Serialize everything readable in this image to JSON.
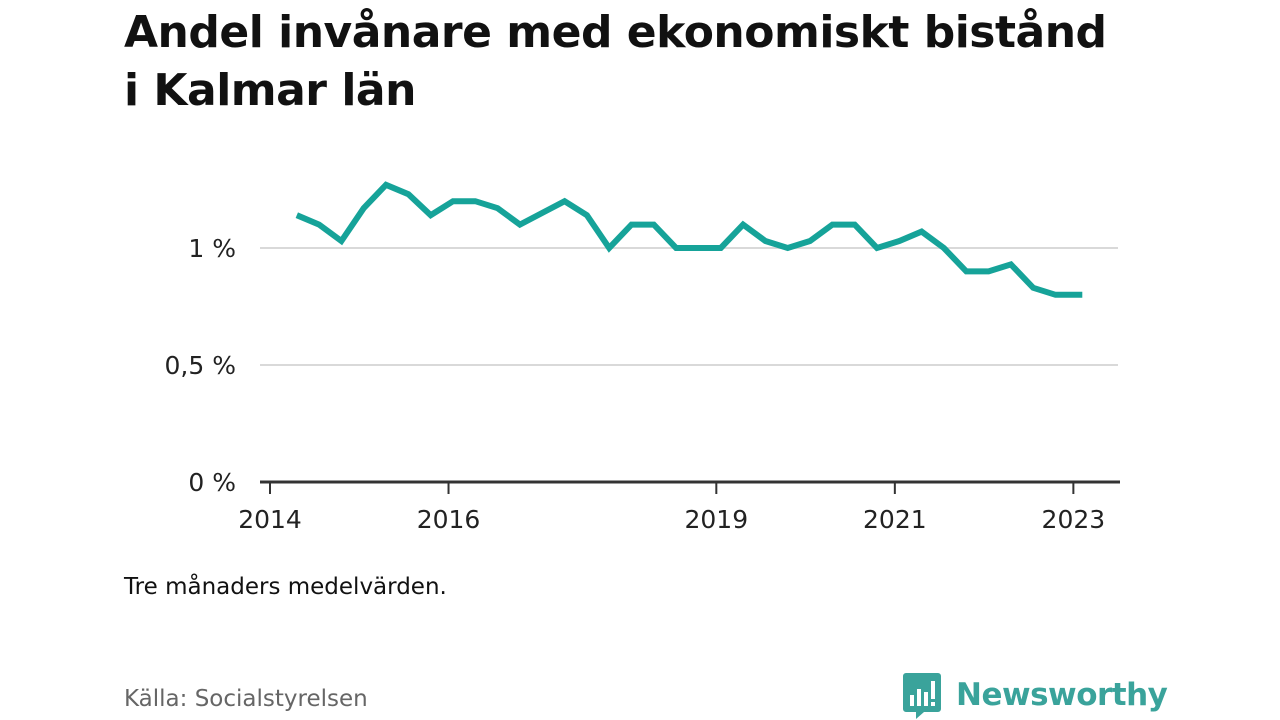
{
  "title": "Andel invånare med ekonomiskt bistånd i Kalmar län",
  "note": "Tre månaders medelvärden.",
  "source": "Källa: Socialstyrelsen",
  "brand": {
    "name": "Newsworthy",
    "icon": "bar-chart-speech-bubble-icon",
    "color": "#3aa39b"
  },
  "chart_data": {
    "type": "line",
    "title": "Andel invånare med ekonomiskt bistånd i Kalmar län",
    "xlabel": "",
    "ylabel": "",
    "line_color": "#16a399",
    "grid": true,
    "ylim": [
      0,
      1.3
    ],
    "y_ticks": [
      {
        "value": 0,
        "label": "0 %"
      },
      {
        "value": 0.5,
        "label": "0,5 %"
      },
      {
        "value": 1,
        "label": "1 %"
      }
    ],
    "x_ticks": [
      {
        "value": 2014.0,
        "label": "2014"
      },
      {
        "value": 2016.0,
        "label": "2016"
      },
      {
        "value": 2019.0,
        "label": "2019"
      },
      {
        "value": 2021.0,
        "label": "2021"
      },
      {
        "value": 2023.0,
        "label": "2023"
      }
    ],
    "xlim": [
      2014.0,
      2023.5
    ],
    "series": [
      {
        "values": [
          [
            2014.3,
            1.14
          ],
          [
            2014.55,
            1.1
          ],
          [
            2014.8,
            1.03
          ],
          [
            2015.05,
            1.17
          ],
          [
            2015.3,
            1.27
          ],
          [
            2015.55,
            1.23
          ],
          [
            2015.8,
            1.14
          ],
          [
            2016.05,
            1.2
          ],
          [
            2016.3,
            1.2
          ],
          [
            2016.55,
            1.17
          ],
          [
            2016.8,
            1.1
          ],
          [
            2017.05,
            1.15
          ],
          [
            2017.3,
            1.2
          ],
          [
            2017.55,
            1.14
          ],
          [
            2017.8,
            1.0
          ],
          [
            2018.05,
            1.1
          ],
          [
            2018.3,
            1.1
          ],
          [
            2018.55,
            1.0
          ],
          [
            2018.8,
            1.0
          ],
          [
            2019.05,
            1.0
          ],
          [
            2019.3,
            1.1
          ],
          [
            2019.55,
            1.03
          ],
          [
            2019.8,
            1.0
          ],
          [
            2020.05,
            1.03
          ],
          [
            2020.3,
            1.1
          ],
          [
            2020.55,
            1.1
          ],
          [
            2020.8,
            1.0
          ],
          [
            2021.05,
            1.03
          ],
          [
            2021.3,
            1.07
          ],
          [
            2021.55,
            1.0
          ],
          [
            2021.8,
            0.9
          ],
          [
            2022.05,
            0.9
          ],
          [
            2022.3,
            0.93
          ],
          [
            2022.55,
            0.83
          ],
          [
            2022.8,
            0.8
          ],
          [
            2023.05,
            0.8
          ],
          [
            2023.1,
            0.8
          ]
        ]
      }
    ]
  }
}
